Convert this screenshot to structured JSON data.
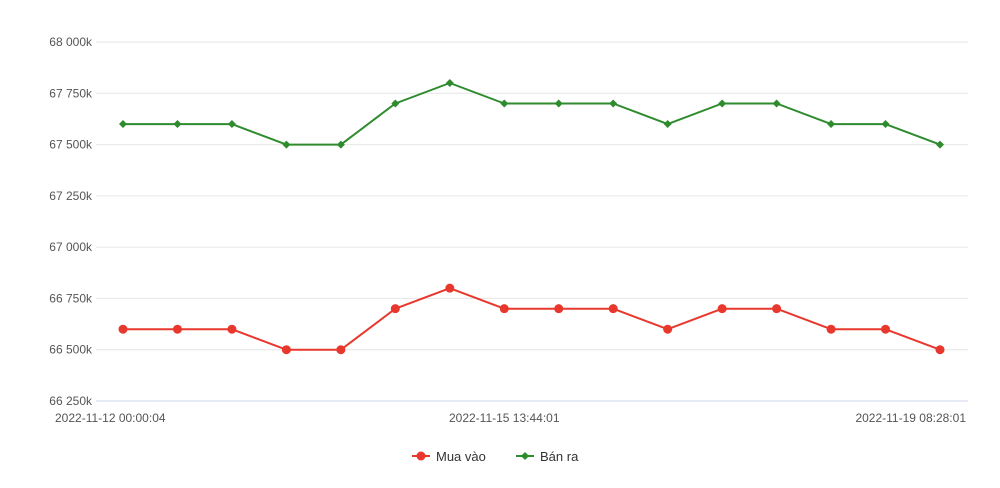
{
  "chart_data": {
    "type": "line",
    "title": "",
    "xlabel": "",
    "ylabel": "",
    "ylim": [
      66250,
      68000
    ],
    "yticks": [
      66250,
      66500,
      66750,
      67000,
      67250,
      67500,
      67750,
      68000
    ],
    "ytick_labels": [
      "66 250k",
      "66 500k",
      "66 750k",
      "67 000k",
      "67 250k",
      "67 500k",
      "67 750k",
      "68 000k"
    ],
    "x_labels": [
      {
        "index": 0,
        "text": "2022-11-12 00:00:04"
      },
      {
        "index": 7,
        "text": "2022-11-15 13:44:01"
      },
      {
        "index": 15,
        "text": "2022-11-19 08:28:01"
      }
    ],
    "grid": true,
    "legend_position": "bottom-center",
    "series": [
      {
        "name": "Mua vào",
        "color": "#e8382d",
        "marker": "circle",
        "values": [
          66600,
          66600,
          66600,
          66500,
          66500,
          66700,
          66800,
          66700,
          66700,
          66700,
          66600,
          66700,
          66700,
          66600,
          66600,
          66500
        ]
      },
      {
        "name": "Bán ra",
        "color": "#2e8b2e",
        "marker": "diamond",
        "values": [
          67600,
          67600,
          67600,
          67500,
          67500,
          67700,
          67800,
          67700,
          67700,
          67700,
          67600,
          67700,
          67700,
          67600,
          67600,
          67500
        ]
      }
    ]
  },
  "colors": {
    "grid": "#e6e6e6",
    "axis": "#ccd6eb"
  }
}
